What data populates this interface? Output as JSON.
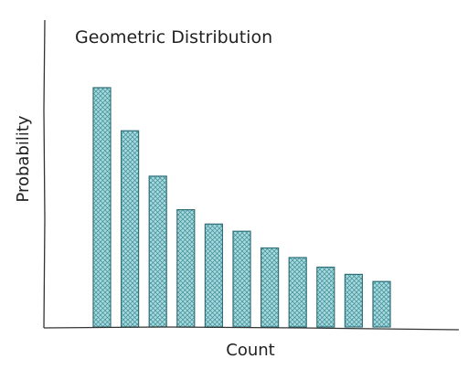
{
  "chart_data": {
    "type": "bar",
    "title": "Geometric Distribution",
    "xlabel": "Count",
    "ylabel": "Probability",
    "values": [
      1.0,
      0.82,
      0.63,
      0.49,
      0.43,
      0.4,
      0.33,
      0.29,
      0.25,
      0.22,
      0.19
    ],
    "ylim": [
      0,
      1.1
    ],
    "grid": false,
    "legend": "none",
    "colors": {
      "bar_fill": "#a8dadc",
      "bar_hatch": "#3c8d99",
      "bar_stroke": "#2f6f78",
      "axis": "#333333"
    }
  }
}
